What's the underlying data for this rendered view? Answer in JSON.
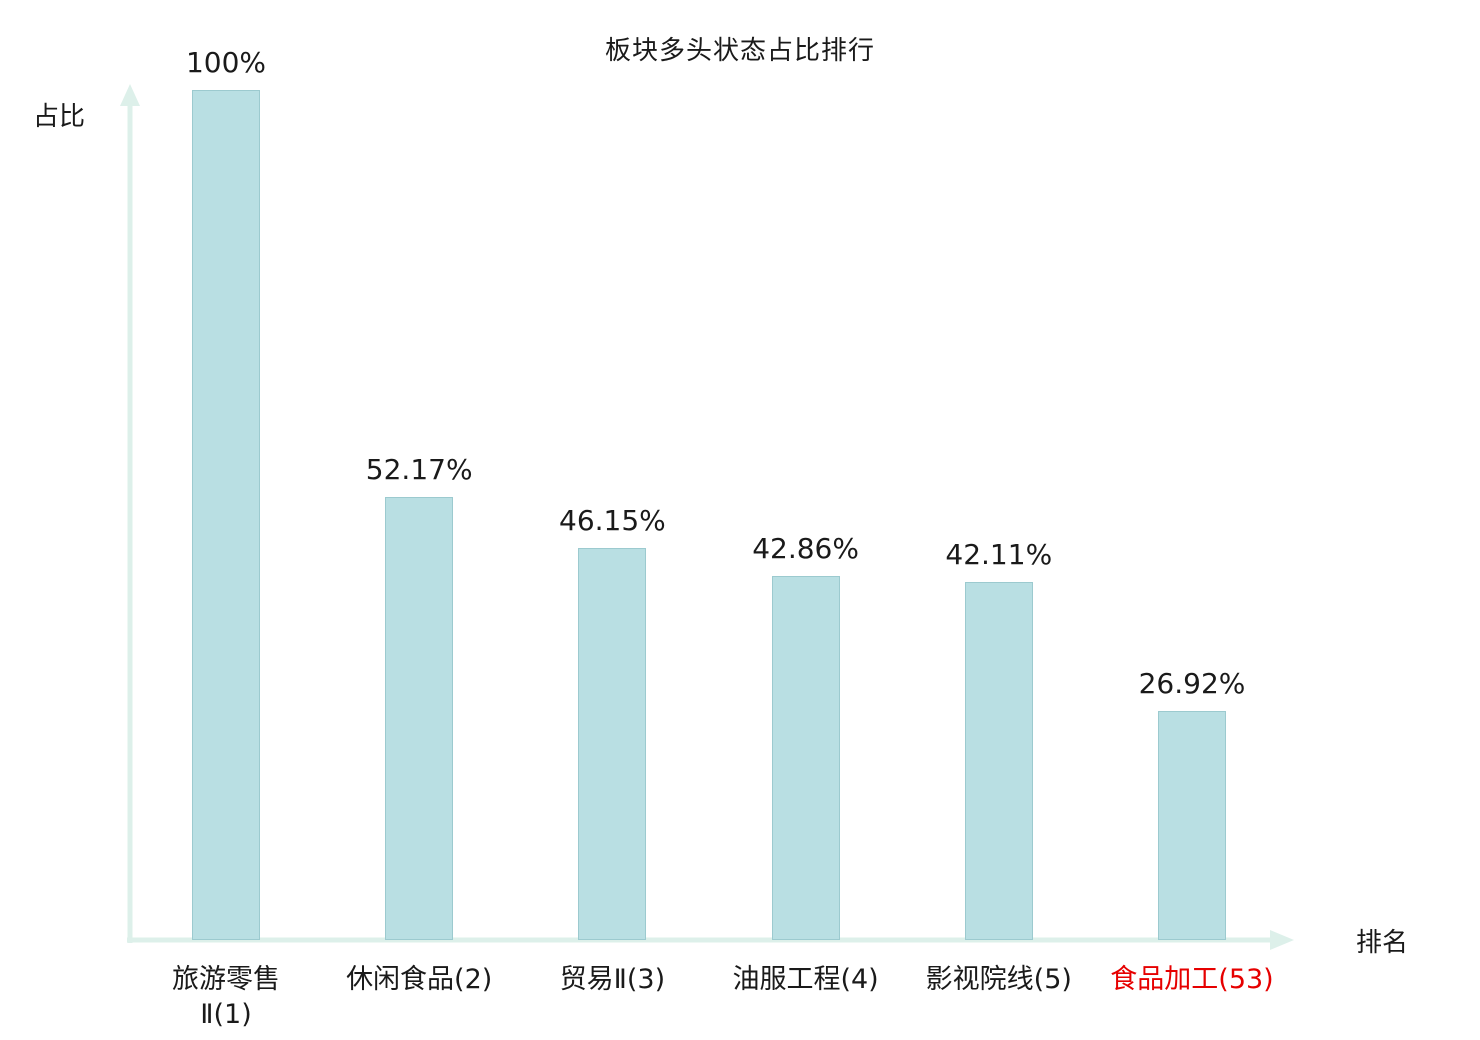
{
  "chart_data": {
    "type": "bar",
    "title": "板块多头状态占比排行",
    "xlabel": "排名",
    "ylabel": "占比",
    "ylim": [
      0,
      100
    ],
    "categories": [
      "旅游零售\nⅡ(1)",
      "休闲食品(2)",
      "贸易Ⅱ(3)",
      "油服工程(4)",
      "影视院线(5)",
      "食品加工(53)"
    ],
    "values": [
      100,
      52.17,
      46.15,
      42.86,
      42.11,
      26.92
    ],
    "value_labels": [
      "100%",
      "52.17%",
      "46.15%",
      "42.86%",
      "42.11%",
      "26.92%"
    ],
    "highlight_index": 5,
    "bar_color": "#b9dfe3",
    "bar_border_color": "#9ccacf",
    "axis_color": "#ddf0ea",
    "label_color": "#1a1a1a",
    "highlight_label_color": "#e60000",
    "grid": false,
    "legend": null
  }
}
